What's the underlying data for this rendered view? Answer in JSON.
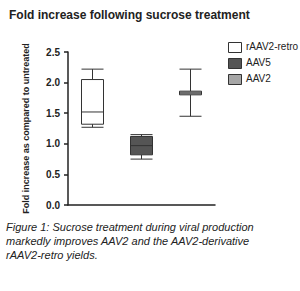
{
  "chart_data": {
    "type": "boxplot",
    "title": "Fold increase following sucrose treatment",
    "ylabel": "Fold increase as compared to untreated",
    "caption": "Figure 1: Sucrose treatment during viral production markedly improves AAV2 and the AAV2-derivative rAAV2-retro yields.",
    "categories": [
      null,
      null,
      null
    ],
    "series": [
      {
        "name": "rAAV2-retro",
        "color": "#ffffff",
        "values": [
          [
            1.27,
            1.32,
            1.52,
            2.05,
            2.22
          ],
          null,
          null
        ]
      },
      {
        "name": "AAV5",
        "color": "#555555",
        "values": [
          null,
          [
            0.75,
            0.82,
            0.97,
            1.12,
            1.15
          ],
          null
        ]
      },
      {
        "name": "AAV2",
        "color": "#a6a6a6",
        "values": [
          null,
          null,
          [
            1.45,
            1.8,
            1.83,
            1.86,
            2.22
          ]
        ]
      }
    ],
    "ylim": [
      0,
      2.5
    ],
    "yticks": [
      {
        "value": 0,
        "label": "0.0"
      },
      {
        "value": 0.5,
        "label": "0.5"
      },
      {
        "value": 1,
        "label": "1.0"
      },
      {
        "value": 1.5,
        "label": "1.5"
      },
      {
        "value": 2,
        "label": "2.0"
      },
      {
        "value": 2.5,
        "label": "2.5"
      }
    ],
    "grid": false,
    "legend": "right",
    "tick_labels": "y"
  }
}
